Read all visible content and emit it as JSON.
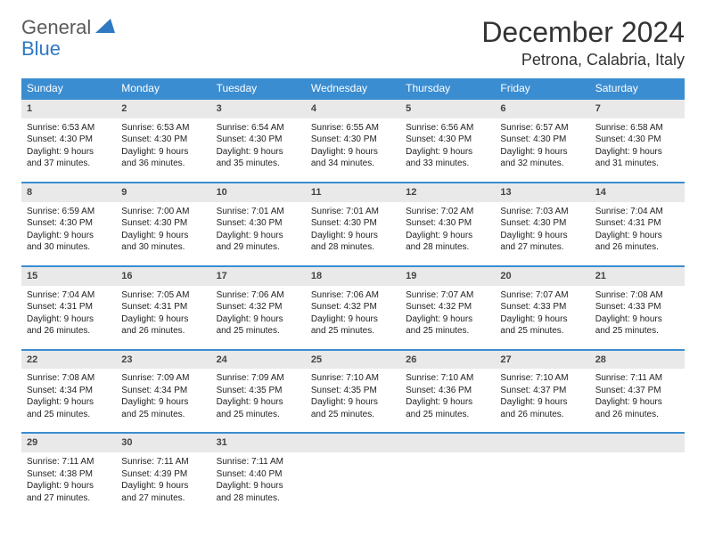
{
  "logo": {
    "text1": "General",
    "text2": "Blue"
  },
  "title": "December 2024",
  "location": "Petrona, Calabria, Italy",
  "colors": {
    "header_bg": "#3b8dd1",
    "header_text": "#ffffff",
    "daynum_bg": "#e9e9e9",
    "row_divider": "#3b8dd1",
    "text": "#222222"
  },
  "weekdays": [
    "Sunday",
    "Monday",
    "Tuesday",
    "Wednesday",
    "Thursday",
    "Friday",
    "Saturday"
  ],
  "weeks": [
    [
      {
        "n": "1",
        "sr": "6:53 AM",
        "ss": "4:30 PM",
        "dl": "9 hours and 37 minutes."
      },
      {
        "n": "2",
        "sr": "6:53 AM",
        "ss": "4:30 PM",
        "dl": "9 hours and 36 minutes."
      },
      {
        "n": "3",
        "sr": "6:54 AM",
        "ss": "4:30 PM",
        "dl": "9 hours and 35 minutes."
      },
      {
        "n": "4",
        "sr": "6:55 AM",
        "ss": "4:30 PM",
        "dl": "9 hours and 34 minutes."
      },
      {
        "n": "5",
        "sr": "6:56 AM",
        "ss": "4:30 PM",
        "dl": "9 hours and 33 minutes."
      },
      {
        "n": "6",
        "sr": "6:57 AM",
        "ss": "4:30 PM",
        "dl": "9 hours and 32 minutes."
      },
      {
        "n": "7",
        "sr": "6:58 AM",
        "ss": "4:30 PM",
        "dl": "9 hours and 31 minutes."
      }
    ],
    [
      {
        "n": "8",
        "sr": "6:59 AM",
        "ss": "4:30 PM",
        "dl": "9 hours and 30 minutes."
      },
      {
        "n": "9",
        "sr": "7:00 AM",
        "ss": "4:30 PM",
        "dl": "9 hours and 30 minutes."
      },
      {
        "n": "10",
        "sr": "7:01 AM",
        "ss": "4:30 PM",
        "dl": "9 hours and 29 minutes."
      },
      {
        "n": "11",
        "sr": "7:01 AM",
        "ss": "4:30 PM",
        "dl": "9 hours and 28 minutes."
      },
      {
        "n": "12",
        "sr": "7:02 AM",
        "ss": "4:30 PM",
        "dl": "9 hours and 28 minutes."
      },
      {
        "n": "13",
        "sr": "7:03 AM",
        "ss": "4:30 PM",
        "dl": "9 hours and 27 minutes."
      },
      {
        "n": "14",
        "sr": "7:04 AM",
        "ss": "4:31 PM",
        "dl": "9 hours and 26 minutes."
      }
    ],
    [
      {
        "n": "15",
        "sr": "7:04 AM",
        "ss": "4:31 PM",
        "dl": "9 hours and 26 minutes."
      },
      {
        "n": "16",
        "sr": "7:05 AM",
        "ss": "4:31 PM",
        "dl": "9 hours and 26 minutes."
      },
      {
        "n": "17",
        "sr": "7:06 AM",
        "ss": "4:32 PM",
        "dl": "9 hours and 25 minutes."
      },
      {
        "n": "18",
        "sr": "7:06 AM",
        "ss": "4:32 PM",
        "dl": "9 hours and 25 minutes."
      },
      {
        "n": "19",
        "sr": "7:07 AM",
        "ss": "4:32 PM",
        "dl": "9 hours and 25 minutes."
      },
      {
        "n": "20",
        "sr": "7:07 AM",
        "ss": "4:33 PM",
        "dl": "9 hours and 25 minutes."
      },
      {
        "n": "21",
        "sr": "7:08 AM",
        "ss": "4:33 PM",
        "dl": "9 hours and 25 minutes."
      }
    ],
    [
      {
        "n": "22",
        "sr": "7:08 AM",
        "ss": "4:34 PM",
        "dl": "9 hours and 25 minutes."
      },
      {
        "n": "23",
        "sr": "7:09 AM",
        "ss": "4:34 PM",
        "dl": "9 hours and 25 minutes."
      },
      {
        "n": "24",
        "sr": "7:09 AM",
        "ss": "4:35 PM",
        "dl": "9 hours and 25 minutes."
      },
      {
        "n": "25",
        "sr": "7:10 AM",
        "ss": "4:35 PM",
        "dl": "9 hours and 25 minutes."
      },
      {
        "n": "26",
        "sr": "7:10 AM",
        "ss": "4:36 PM",
        "dl": "9 hours and 25 minutes."
      },
      {
        "n": "27",
        "sr": "7:10 AM",
        "ss": "4:37 PM",
        "dl": "9 hours and 26 minutes."
      },
      {
        "n": "28",
        "sr": "7:11 AM",
        "ss": "4:37 PM",
        "dl": "9 hours and 26 minutes."
      }
    ],
    [
      {
        "n": "29",
        "sr": "7:11 AM",
        "ss": "4:38 PM",
        "dl": "9 hours and 27 minutes."
      },
      {
        "n": "30",
        "sr": "7:11 AM",
        "ss": "4:39 PM",
        "dl": "9 hours and 27 minutes."
      },
      {
        "n": "31",
        "sr": "7:11 AM",
        "ss": "4:40 PM",
        "dl": "9 hours and 28 minutes."
      },
      null,
      null,
      null,
      null
    ]
  ],
  "labels": {
    "sunrise": "Sunrise:",
    "sunset": "Sunset:",
    "daylight": "Daylight:"
  }
}
